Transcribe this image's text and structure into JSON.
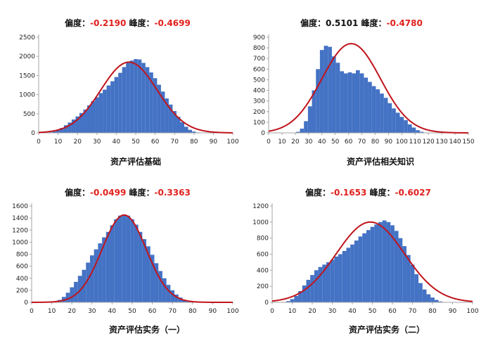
{
  "panels": [
    {
      "skew_label": "偏度：",
      "skew_value": "-0.2190",
      "kurt_label": "峰度：",
      "kurt_value": "-0.4699",
      "xlabel": "资产评估基础"
    },
    {
      "skew_label": "偏度：",
      "skew_value": "0.5101",
      "kurt_label": "峰度：",
      "kurt_value": "-0.4780",
      "xlabel": "资产评估相关知识"
    },
    {
      "skew_label": "偏度：",
      "skew_value": "-0.0499",
      "kurt_label": "峰度：",
      "kurt_value": "-0.3363",
      "xlabel": "资产评估实务（一）"
    },
    {
      "skew_label": "偏度：",
      "skew_value": "-0.1653",
      "kurt_label": "峰度：",
      "kurt_value": "-0.6027",
      "xlabel": "资产评估实务（二）"
    }
  ],
  "colors": {
    "bar": "#4472c4",
    "curve": "#c0141c",
    "stat_highlight": "#e0201c"
  },
  "chart_data": [
    {
      "type": "bar",
      "subtype": "histogram-with-normal-curve",
      "bin_width": 2,
      "x_ticks": [
        0,
        10,
        20,
        30,
        40,
        50,
        60,
        70,
        80,
        90,
        100
      ],
      "y_ticks": [
        0,
        500,
        1000,
        1500,
        2000,
        2500
      ],
      "xlim": [
        0,
        100
      ],
      "ylim": [
        0,
        2500
      ],
      "bars": [
        [
          4,
          5
        ],
        [
          6,
          15
        ],
        [
          8,
          40
        ],
        [
          10,
          80
        ],
        [
          12,
          130
        ],
        [
          14,
          200
        ],
        [
          16,
          270
        ],
        [
          18,
          350
        ],
        [
          20,
          430
        ],
        [
          22,
          520
        ],
        [
          24,
          610
        ],
        [
          26,
          720
        ],
        [
          28,
          830
        ],
        [
          30,
          930
        ],
        [
          32,
          1040
        ],
        [
          34,
          1130
        ],
        [
          36,
          1240
        ],
        [
          38,
          1350
        ],
        [
          40,
          1460
        ],
        [
          42,
          1570
        ],
        [
          44,
          1720
        ],
        [
          46,
          1840
        ],
        [
          48,
          1890
        ],
        [
          50,
          1930
        ],
        [
          52,
          1920
        ],
        [
          54,
          1830
        ],
        [
          56,
          1720
        ],
        [
          58,
          1580
        ],
        [
          60,
          1430
        ],
        [
          62,
          1260
        ],
        [
          64,
          1080
        ],
        [
          66,
          900
        ],
        [
          68,
          740
        ],
        [
          70,
          570
        ],
        [
          72,
          420
        ],
        [
          74,
          280
        ],
        [
          76,
          160
        ],
        [
          78,
          80
        ],
        [
          80,
          35
        ],
        [
          82,
          12
        ],
        [
          84,
          4
        ]
      ],
      "curve_peak": 1850,
      "curve_mean": 46.5,
      "curve_sd": 14.5,
      "curve_range": [
        0,
        100
      ]
    },
    {
      "type": "bar",
      "subtype": "histogram-with-normal-curve",
      "bin_width": 3,
      "x_ticks": [
        0,
        10,
        20,
        30,
        40,
        50,
        60,
        70,
        80,
        90,
        100,
        110,
        120,
        130,
        140,
        150
      ],
      "y_ticks": [
        0,
        100,
        200,
        300,
        400,
        500,
        600,
        700,
        800,
        900
      ],
      "xlim": [
        0,
        150
      ],
      "ylim": [
        0,
        900
      ],
      "bars": [
        [
          22,
          10
        ],
        [
          25,
          40
        ],
        [
          28,
          110
        ],
        [
          31,
          250
        ],
        [
          34,
          400
        ],
        [
          37,
          600
        ],
        [
          40,
          780
        ],
        [
          43,
          820
        ],
        [
          46,
          810
        ],
        [
          49,
          720
        ],
        [
          52,
          660
        ],
        [
          55,
          580
        ],
        [
          58,
          560
        ],
        [
          61,
          570
        ],
        [
          64,
          560
        ],
        [
          67,
          590
        ],
        [
          70,
          560
        ],
        [
          73,
          520
        ],
        [
          76,
          480
        ],
        [
          79,
          440
        ],
        [
          82,
          410
        ],
        [
          85,
          370
        ],
        [
          88,
          330
        ],
        [
          91,
          280
        ],
        [
          94,
          230
        ],
        [
          97,
          190
        ],
        [
          100,
          150
        ],
        [
          103,
          120
        ],
        [
          106,
          80
        ],
        [
          109,
          50
        ],
        [
          112,
          25
        ],
        [
          115,
          10
        ]
      ],
      "curve_peak": 840,
      "curve_mean": 62,
      "curve_sd": 22,
      "curve_range": [
        0,
        150
      ]
    },
    {
      "type": "bar",
      "subtype": "histogram-with-normal-curve",
      "bin_width": 2,
      "x_ticks": [
        0,
        10,
        20,
        30,
        40,
        50,
        60,
        70,
        80,
        90,
        100
      ],
      "y_ticks": [
        0,
        200,
        400,
        600,
        800,
        1000,
        1200,
        1400,
        1600
      ],
      "xlim": [
        0,
        100
      ],
      "ylim": [
        0,
        1600
      ],
      "bars": [
        [
          12,
          10
        ],
        [
          14,
          40
        ],
        [
          16,
          90
        ],
        [
          18,
          160
        ],
        [
          20,
          250
        ],
        [
          22,
          340
        ],
        [
          24,
          440
        ],
        [
          26,
          540
        ],
        [
          28,
          660
        ],
        [
          30,
          780
        ],
        [
          32,
          880
        ],
        [
          34,
          980
        ],
        [
          36,
          1080
        ],
        [
          38,
          1170
        ],
        [
          40,
          1280
        ],
        [
          42,
          1380
        ],
        [
          44,
          1440
        ],
        [
          46,
          1460
        ],
        [
          48,
          1440
        ],
        [
          50,
          1380
        ],
        [
          52,
          1290
        ],
        [
          54,
          1170
        ],
        [
          56,
          1050
        ],
        [
          58,
          930
        ],
        [
          60,
          790
        ],
        [
          62,
          650
        ],
        [
          64,
          520
        ],
        [
          66,
          400
        ],
        [
          68,
          290
        ],
        [
          70,
          200
        ],
        [
          72,
          130
        ],
        [
          74,
          80
        ],
        [
          76,
          40
        ],
        [
          78,
          20
        ],
        [
          80,
          8
        ]
      ],
      "curve_peak": 1450,
      "curve_mean": 46,
      "curve_sd": 11,
      "curve_range": [
        0,
        100
      ]
    },
    {
      "type": "bar",
      "subtype": "histogram-with-normal-curve",
      "bin_width": 2,
      "x_ticks": [
        0,
        10,
        20,
        30,
        40,
        50,
        60,
        70,
        80,
        90,
        100
      ],
      "y_ticks": [
        0,
        200,
        400,
        600,
        800,
        1000,
        1200
      ],
      "xlim": [
        0,
        100
      ],
      "ylim": [
        0,
        1200
      ],
      "bars": [
        [
          6,
          5
        ],
        [
          8,
          15
        ],
        [
          10,
          40
        ],
        [
          12,
          80
        ],
        [
          14,
          140
        ],
        [
          16,
          210
        ],
        [
          18,
          280
        ],
        [
          20,
          340
        ],
        [
          22,
          400
        ],
        [
          24,
          440
        ],
        [
          26,
          470
        ],
        [
          28,
          500
        ],
        [
          30,
          530
        ],
        [
          32,
          570
        ],
        [
          34,
          600
        ],
        [
          36,
          640
        ],
        [
          38,
          680
        ],
        [
          40,
          720
        ],
        [
          42,
          770
        ],
        [
          44,
          820
        ],
        [
          46,
          860
        ],
        [
          48,
          900
        ],
        [
          50,
          940
        ],
        [
          52,
          970
        ],
        [
          54,
          1000
        ],
        [
          56,
          1020
        ],
        [
          58,
          1000
        ],
        [
          60,
          960
        ],
        [
          62,
          890
        ],
        [
          64,
          800
        ],
        [
          66,
          700
        ],
        [
          68,
          590
        ],
        [
          70,
          470
        ],
        [
          72,
          350
        ],
        [
          74,
          240
        ],
        [
          76,
          160
        ],
        [
          78,
          100
        ],
        [
          80,
          60
        ],
        [
          82,
          30
        ],
        [
          84,
          10
        ]
      ],
      "curve_peak": 1000,
      "curve_mean": 49,
      "curve_sd": 17,
      "curve_range": [
        0,
        100
      ]
    }
  ]
}
